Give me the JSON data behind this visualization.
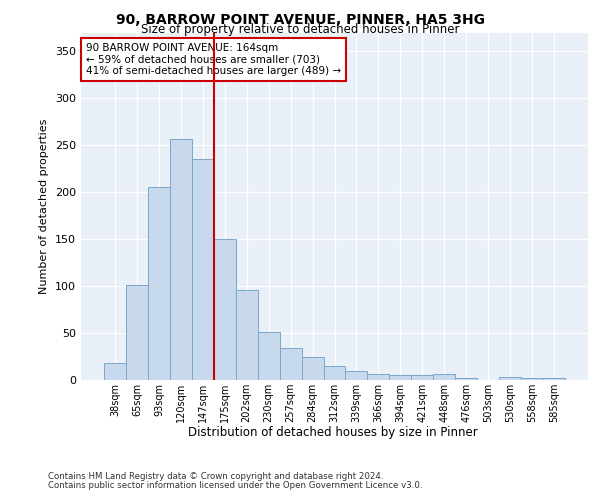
{
  "title1": "90, BARROW POINT AVENUE, PINNER, HA5 3HG",
  "title2": "Size of property relative to detached houses in Pinner",
  "xlabel": "Distribution of detached houses by size in Pinner",
  "ylabel": "Number of detached properties",
  "categories": [
    "38sqm",
    "65sqm",
    "93sqm",
    "120sqm",
    "147sqm",
    "175sqm",
    "202sqm",
    "230sqm",
    "257sqm",
    "284sqm",
    "312sqm",
    "339sqm",
    "366sqm",
    "394sqm",
    "421sqm",
    "448sqm",
    "476sqm",
    "503sqm",
    "530sqm",
    "558sqm",
    "585sqm"
  ],
  "values": [
    18,
    101,
    205,
    257,
    235,
    150,
    96,
    51,
    34,
    25,
    15,
    10,
    6,
    5,
    5,
    6,
    2,
    0,
    3,
    2,
    2
  ],
  "bar_color": "#c8d9ed",
  "bar_edge_color": "#7ba7cc",
  "bar_width": 1.0,
  "vline_x": 4.5,
  "vline_color": "#cc0000",
  "annotation_text": "90 BARROW POINT AVENUE: 164sqm\n← 59% of detached houses are smaller (703)\n41% of semi-detached houses are larger (489) →",
  "annotation_box_color": "#ffffff",
  "annotation_box_edge": "#cc0000",
  "ylim": [
    0,
    370
  ],
  "yticks": [
    0,
    50,
    100,
    150,
    200,
    250,
    300,
    350
  ],
  "footer1": "Contains HM Land Registry data © Crown copyright and database right 2024.",
  "footer2": "Contains public sector information licensed under the Open Government Licence v3.0.",
  "plot_bg": "#eaf0f8"
}
